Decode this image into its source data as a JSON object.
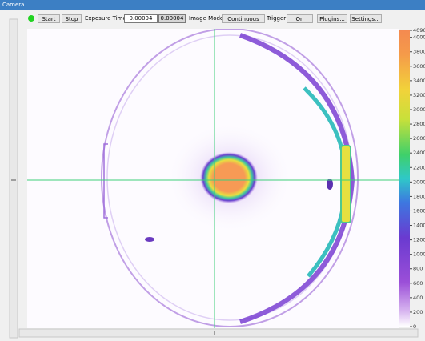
{
  "window": {
    "title": "Camera"
  },
  "toolbar": {
    "start": "Start",
    "stop": "Stop",
    "exposure_label": "Exposure Time",
    "exposure_input": "0.00004",
    "exposure_readback": "0.00004",
    "image_mode_label": "Image Mode",
    "image_mode": "Continuous",
    "trigger_label": "Trigger",
    "trigger": "On",
    "plugins": "Plugins...",
    "settings": "Settings..."
  },
  "colorbar": {
    "lim": [
      0,
      4096
    ],
    "ticks": [
      0,
      200,
      400,
      600,
      800,
      1000,
      1200,
      1400,
      1600,
      1800,
      2000,
      2200,
      2400,
      2600,
      2800,
      3000,
      3200,
      3400,
      3600,
      3800,
      4000,
      4096
    ]
  }
}
